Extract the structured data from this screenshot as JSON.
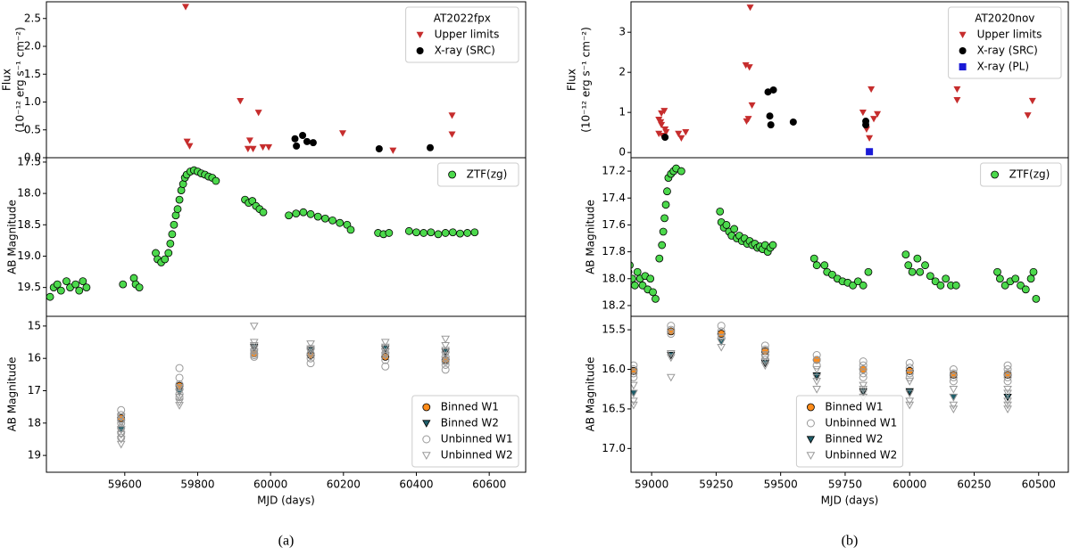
{
  "chart_data": [
    {
      "type": "scatter",
      "ylabel": [
        "Flux",
        "(10⁻¹² erg s⁻¹ cm⁻²)"
      ],
      "xlim": [
        59385,
        60700
      ],
      "ylim": [
        0,
        2.8
      ],
      "y_inverted": false,
      "yticks": [
        {
          "value": 0,
          "label": "0.0"
        },
        0.5,
        {
          "value": 1,
          "label": "1.0"
        },
        1.5,
        {
          "value": 2,
          "label": "2.0"
        },
        2.5
      ],
      "legend": "upper right",
      "legend_title": "AT2022fpx",
      "series": [
        {
          "name": "Upper limits",
          "marker": "triangle-down",
          "color": "#c62d2d",
          "x": [
            59767,
            59771,
            59778,
            59917,
            59943,
            59938,
            59952,
            59967,
            59979,
            59995,
            60198,
            60336,
            60498,
            60498
          ],
          "values": [
            2.71,
            0.29,
            0.21,
            1.02,
            0.31,
            0.16,
            0.16,
            0.81,
            0.19,
            0.19,
            0.44,
            0.13,
            0.76,
            0.42
          ]
        },
        {
          "name": "X-ray (SRC)",
          "marker": "circle",
          "color": "#000000",
          "x": [
            60067,
            60071,
            60088,
            60100,
            60117,
            60298,
            60438
          ],
          "values": [
            0.34,
            0.21,
            0.4,
            0.29,
            0.27,
            0.16,
            0.18
          ]
        }
      ]
    },
    {
      "type": "scatter",
      "ylabel": [
        "AB Magnitude"
      ],
      "xlim": [
        59385,
        60700
      ],
      "ylim": [
        17.43,
        19.96
      ],
      "y_inverted": true,
      "yticks": [
        17.5,
        {
          "value": 18,
          "label": "18.0"
        },
        18.5,
        {
          "value": 19,
          "label": "19.0"
        },
        19.5
      ],
      "legend": "upper right",
      "series": [
        {
          "name": "ZTF(zg)",
          "marker": "circle",
          "color": "#4cd94c",
          "edgecolor": "#000000",
          "x": [
            59395,
            59405,
            59415,
            59425,
            59440,
            59450,
            59465,
            59475,
            59485,
            59495,
            59595,
            59625,
            59630,
            59640,
            59685,
            59690,
            59700,
            59710,
            59720,
            59725,
            59730,
            59735,
            59740,
            59745,
            59750,
            59755,
            59760,
            59765,
            59770,
            59780,
            59790,
            59800,
            59810,
            59820,
            59830,
            59840,
            59850,
            59930,
            59940,
            59950,
            59960,
            59970,
            59980,
            60050,
            60070,
            60090,
            60110,
            60130,
            60150,
            60170,
            60190,
            60210,
            60220,
            60295,
            60310,
            60325,
            60380,
            60400,
            60420,
            60440,
            60460,
            60480,
            60500,
            60520,
            60540,
            60560
          ],
          "values": [
            19.65,
            19.5,
            19.45,
            19.55,
            19.4,
            19.5,
            19.45,
            19.55,
            19.4,
            19.5,
            19.45,
            19.35,
            19.45,
            19.5,
            18.95,
            19.05,
            19.1,
            19.05,
            18.95,
            18.8,
            18.65,
            18.5,
            18.35,
            18.25,
            18.1,
            17.95,
            17.85,
            17.75,
            17.7,
            17.65,
            17.63,
            17.65,
            17.68,
            17.7,
            17.73,
            17.75,
            17.8,
            18.1,
            18.15,
            18.12,
            18.2,
            18.25,
            18.3,
            18.35,
            18.32,
            18.3,
            18.33,
            18.37,
            18.4,
            18.43,
            18.47,
            18.5,
            18.58,
            18.63,
            18.65,
            18.63,
            18.6,
            18.62,
            18.63,
            18.62,
            18.65,
            18.63,
            18.62,
            18.64,
            18.63,
            18.62
          ]
        }
      ]
    },
    {
      "type": "scatter",
      "ylabel": [
        "AB Magnitude"
      ],
      "xlim": [
        59385,
        60700
      ],
      "ylim": [
        14.7,
        19.52
      ],
      "y_inverted": true,
      "yticks": [
        15,
        16,
        17,
        18,
        19
      ],
      "xticks": [
        59600,
        59800,
        60000,
        60200,
        60400,
        60600
      ],
      "x_label": "MJD (days)",
      "caption": "(a)",
      "legend": "lower right",
      "series": [
        {
          "name": "Binned W1",
          "marker": "circle",
          "color": "#ff8c1a",
          "edgecolor": "#000000",
          "x": [
            59590,
            59750,
            59955,
            60110,
            60315,
            60480
          ],
          "values": [
            17.85,
            16.85,
            15.85,
            15.9,
            15.95,
            16.05
          ]
        },
        {
          "name": "Binned W2",
          "marker": "triangle-down",
          "color": "#1e5f6b",
          "edgecolor": "#000000",
          "x": [
            59590,
            59750,
            59955,
            60110,
            60315,
            60480
          ],
          "values": [
            18.2,
            17.05,
            15.65,
            15.75,
            15.7,
            15.8
          ]
        },
        {
          "name": "Unbinned W1",
          "marker": "circle",
          "color": "#999999",
          "hollow": true,
          "x": [
            59590,
            59590,
            59590,
            59590,
            59590,
            59590,
            59590,
            59750,
            59750,
            59750,
            59750,
            59750,
            59750,
            59955,
            59955,
            59955,
            59955,
            60110,
            60110,
            60110,
            60110,
            60315,
            60315,
            60315,
            60315,
            60480,
            60480,
            60480,
            60480,
            60480
          ],
          "values": [
            17.6,
            17.75,
            17.9,
            18.0,
            18.15,
            18.3,
            18.45,
            16.3,
            16.6,
            16.8,
            16.95,
            17.1,
            17.2,
            15.75,
            15.85,
            15.9,
            15.95,
            15.7,
            15.85,
            16.0,
            16.15,
            15.7,
            15.85,
            16.05,
            16.25,
            15.8,
            15.95,
            16.1,
            16.2,
            16.35
          ]
        },
        {
          "name": "Unbinned W2",
          "marker": "triangle-down",
          "color": "#999999",
          "hollow": true,
          "x": [
            59590,
            59590,
            59590,
            59590,
            59590,
            59590,
            59750,
            59750,
            59750,
            59750,
            59750,
            59955,
            59955,
            59955,
            59955,
            59955,
            60110,
            60110,
            60110,
            60110,
            60315,
            60315,
            60315,
            60315,
            60480,
            60480,
            60480,
            60480,
            60480
          ],
          "values": [
            17.8,
            18.0,
            18.2,
            18.35,
            18.5,
            18.65,
            16.9,
            17.05,
            17.2,
            17.35,
            17.45,
            15.0,
            15.5,
            15.6,
            15.7,
            15.8,
            15.55,
            15.7,
            15.8,
            15.95,
            15.5,
            15.65,
            15.8,
            15.9,
            15.4,
            15.6,
            15.75,
            15.9,
            16.05
          ]
        }
      ]
    },
    {
      "type": "scatter",
      "ylabel": [
        "Flux",
        "(10⁻¹² erg s⁻¹ cm⁻²)"
      ],
      "xlim": [
        58920,
        60615
      ],
      "ylim": [
        -0.13,
        3.76
      ],
      "y_inverted": false,
      "yticks": [
        0,
        1,
        2,
        3
      ],
      "legend": "upper right",
      "legend_title": "AT2020nov",
      "series": [
        {
          "name": "Upper limits",
          "marker": "triangle-down",
          "color": "#c62d2d",
          "x": [
            59028,
            59038,
            59049,
            59038,
            59052,
            59028,
            59042,
            59056,
            59035,
            59104,
            59115,
            59132,
            59365,
            59379,
            59382,
            59375,
            59368,
            59389,
            59819,
            59851,
            59833,
            59844,
            59861,
            59875,
            60184,
            60184,
            60458,
            60476
          ],
          "values": [
            0.82,
            0.98,
            1.04,
            0.69,
            0.58,
            0.47,
            0.42,
            0.51,
            0.76,
            0.47,
            0.36,
            0.51,
            2.18,
            2.13,
            3.62,
            0.84,
            0.78,
            1.18,
            1.0,
            1.58,
            0.58,
            0.36,
            0.84,
            0.96,
            1.58,
            1.31,
            0.93,
            1.29
          ]
        },
        {
          "name": "X-ray (SRC)",
          "marker": "circle",
          "color": "#000000",
          "x": [
            59052,
            59451,
            59458,
            59472,
            59462,
            59549,
            59830,
            59830
          ],
          "values": [
            0.38,
            1.51,
            0.91,
            1.56,
            0.69,
            0.76,
            0.78,
            0.69
          ]
        },
        {
          "name": "X-ray (PL)",
          "marker": "square",
          "color": "#1a1ad6",
          "x": [
            59844
          ],
          "values": [
            0.02
          ]
        }
      ]
    },
    {
      "type": "scatter",
      "ylabel": [
        "AB Magnitude"
      ],
      "xlim": [
        58920,
        60615
      ],
      "ylim": [
        17.1,
        18.28
      ],
      "y_inverted": true,
      "yticks": [
        17.2,
        17.4,
        17.6,
        17.8,
        {
          "value": 18,
          "label": "18.0"
        },
        18.2
      ],
      "legend": "upper right",
      "series": [
        {
          "name": "ZTF(zg)",
          "marker": "circle",
          "color": "#4cd94c",
          "edgecolor": "#000000",
          "x": [
            58910,
            58915,
            58925,
            58935,
            58945,
            58955,
            58965,
            58975,
            58985,
            58995,
            59005,
            59015,
            59030,
            59040,
            59045,
            59050,
            59055,
            59060,
            59065,
            59075,
            59085,
            59095,
            59115,
            59265,
            59270,
            59280,
            59290,
            59300,
            59310,
            59320,
            59330,
            59340,
            59350,
            59360,
            59370,
            59380,
            59390,
            59400,
            59410,
            59420,
            59430,
            59440,
            59450,
            59460,
            59470,
            59630,
            59640,
            59670,
            59680,
            59700,
            59720,
            59740,
            59760,
            59780,
            59800,
            59820,
            59840,
            59985,
            59995,
            60010,
            60030,
            60040,
            60060,
            60080,
            60100,
            60120,
            60140,
            60160,
            60180,
            60340,
            60350,
            60370,
            60390,
            60410,
            60430,
            60450,
            60470,
            60480,
            60490
          ],
          "values": [
            17.95,
            17.9,
            18.0,
            18.05,
            17.95,
            18.0,
            18.05,
            17.98,
            18.08,
            18.0,
            18.1,
            18.15,
            17.85,
            17.75,
            17.65,
            17.55,
            17.45,
            17.35,
            17.25,
            17.22,
            17.2,
            17.18,
            17.2,
            17.5,
            17.58,
            17.62,
            17.6,
            17.65,
            17.68,
            17.63,
            17.7,
            17.68,
            17.72,
            17.7,
            17.74,
            17.72,
            17.75,
            17.74,
            17.77,
            17.76,
            17.78,
            17.75,
            17.8,
            17.77,
            17.75,
            17.85,
            17.9,
            17.9,
            17.95,
            17.97,
            18.0,
            18.02,
            18.03,
            18.05,
            18.02,
            18.05,
            17.95,
            17.82,
            17.9,
            17.95,
            17.85,
            17.95,
            17.9,
            17.98,
            18.02,
            18.05,
            18.0,
            18.05,
            18.05,
            17.95,
            18.0,
            18.05,
            18.02,
            18.0,
            18.05,
            18.08,
            18.0,
            17.95,
            18.15
          ]
        }
      ]
    },
    {
      "type": "scatter",
      "ylabel": [
        "AB Magnitude"
      ],
      "xlim": [
        58920,
        60615
      ],
      "ylim": [
        15.33,
        17.3
      ],
      "y_inverted": true,
      "yticks": [
        15.5,
        {
          "value": 16,
          "label": "16.0"
        },
        16.5,
        {
          "value": 17,
          "label": "17.0"
        }
      ],
      "xticks": [
        59000,
        59250,
        59500,
        59750,
        60000,
        60250,
        60500
      ],
      "x_label": "MJD (days)",
      "caption": "(b)",
      "legend": "lower center",
      "series": [
        {
          "name": "Binned W1",
          "marker": "circle",
          "color": "#ff8c1a",
          "edgecolor": "#000000",
          "x": [
            58930,
            59075,
            59270,
            59440,
            59640,
            59820,
            60000,
            60170,
            60380
          ],
          "values": [
            16.02,
            15.52,
            15.55,
            15.77,
            15.88,
            16.0,
            16.02,
            16.07,
            16.07
          ]
        },
        {
          "name": "Unbinned W1",
          "marker": "circle",
          "color": "#999999",
          "hollow": true,
          "x": [
            58930,
            58930,
            58930,
            58930,
            59075,
            59075,
            59075,
            59270,
            59270,
            59270,
            59440,
            59440,
            59440,
            59440,
            59640,
            59640,
            59640,
            59820,
            59820,
            59820,
            59820,
            59820,
            60000,
            60000,
            60000,
            60000,
            60170,
            60170,
            60170,
            60170,
            60380,
            60380,
            60380,
            60380,
            60380
          ],
          "values": [
            15.95,
            16.0,
            16.05,
            16.1,
            15.45,
            15.5,
            15.55,
            15.45,
            15.52,
            15.6,
            15.7,
            15.75,
            15.82,
            15.88,
            15.82,
            15.88,
            15.95,
            15.9,
            15.95,
            16.0,
            16.05,
            16.1,
            15.92,
            15.98,
            16.05,
            16.1,
            16.0,
            16.05,
            16.1,
            16.15,
            15.95,
            16.0,
            16.05,
            16.1,
            16.15
          ]
        },
        {
          "name": "Binned W2",
          "marker": "triangle-down",
          "color": "#1e5f6b",
          "edgecolor": "#000000",
          "x": [
            58930,
            59075,
            59270,
            59440,
            59640,
            59820,
            60000,
            60170,
            60380
          ],
          "values": [
            16.3,
            15.82,
            15.65,
            15.92,
            16.08,
            16.28,
            16.28,
            16.35,
            16.35
          ]
        },
        {
          "name": "Unbinned W2",
          "marker": "triangle-down",
          "color": "#999999",
          "hollow": true,
          "x": [
            58930,
            58930,
            58930,
            58930,
            59075,
            59075,
            59075,
            59270,
            59270,
            59270,
            59440,
            59440,
            59440,
            59640,
            59640,
            59640,
            59640,
            59820,
            59820,
            59820,
            59820,
            60000,
            60000,
            60000,
            60000,
            60170,
            60170,
            60170,
            60170,
            60380,
            60380,
            60380,
            60380,
            60380
          ],
          "values": [
            16.2,
            16.3,
            16.4,
            16.45,
            15.8,
            15.85,
            16.1,
            15.6,
            15.65,
            15.72,
            15.85,
            15.9,
            15.95,
            16.0,
            16.1,
            16.15,
            16.25,
            16.2,
            16.25,
            16.3,
            16.35,
            16.15,
            16.3,
            16.4,
            16.45,
            16.25,
            16.35,
            16.45,
            16.5,
            16.25,
            16.3,
            16.4,
            16.45,
            16.5
          ]
        }
      ]
    }
  ]
}
